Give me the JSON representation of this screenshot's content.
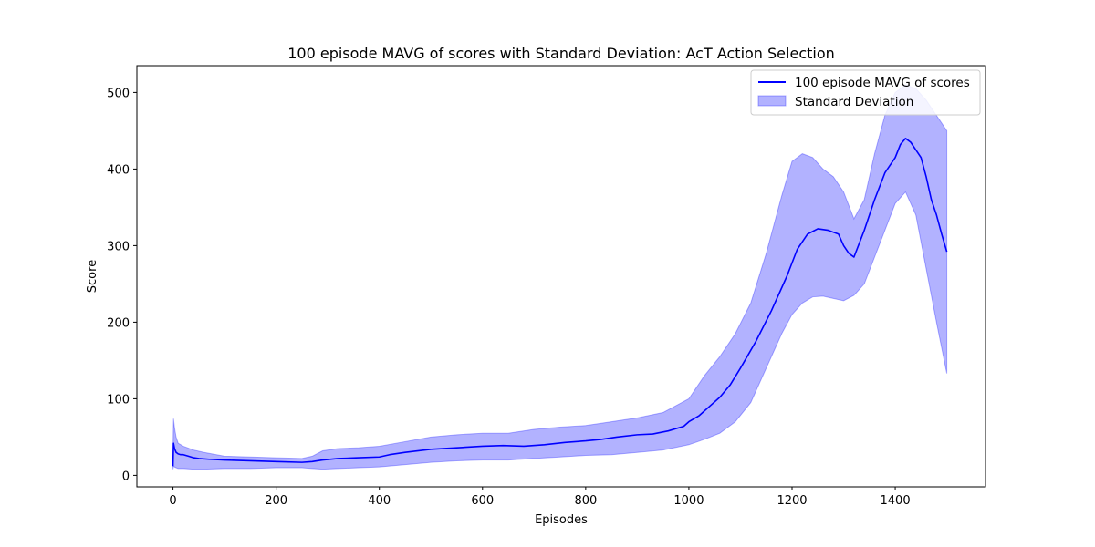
{
  "chart_data": {
    "type": "line",
    "title": "100 episode MAVG of scores with Standard Deviation: AcT Action Selection",
    "xlabel": "Episodes",
    "ylabel": "Score",
    "xlim": [
      -70,
      1575
    ],
    "ylim": [
      -15,
      535
    ],
    "x_ticks": [
      0,
      200,
      400,
      600,
      800,
      1000,
      1200,
      1400
    ],
    "y_ticks": [
      0,
      100,
      200,
      300,
      400,
      500
    ],
    "grid": false,
    "legend_position": "top-right",
    "series": [
      {
        "name": "100 episode MAVG of scores",
        "kind": "line",
        "color": "#0000ff",
        "x": [
          0,
          1,
          3,
          6,
          10,
          15,
          20,
          30,
          40,
          50,
          70,
          100,
          150,
          200,
          250,
          270,
          290,
          320,
          360,
          400,
          420,
          450,
          500,
          550,
          600,
          640,
          680,
          720,
          760,
          800,
          830,
          860,
          900,
          930,
          960,
          990,
          1000,
          1020,
          1040,
          1060,
          1080,
          1100,
          1130,
          1160,
          1190,
          1210,
          1230,
          1250,
          1270,
          1290,
          1300,
          1310,
          1320,
          1340,
          1360,
          1380,
          1400,
          1410,
          1420,
          1430,
          1440,
          1450,
          1460,
          1470,
          1480,
          1490,
          1500
        ],
        "y": [
          12,
          42,
          35,
          30,
          28,
          27,
          27,
          25,
          23,
          22,
          21,
          20,
          19,
          18,
          17,
          18,
          20,
          22,
          23,
          24,
          27,
          30,
          34,
          36,
          38,
          39,
          38,
          40,
          43,
          45,
          47,
          50,
          53,
          54,
          58,
          64,
          70,
          78,
          90,
          102,
          118,
          140,
          175,
          215,
          260,
          295,
          315,
          322,
          320,
          315,
          300,
          290,
          285,
          320,
          360,
          395,
          415,
          432,
          440,
          435,
          425,
          415,
          390,
          360,
          340,
          315,
          292
        ]
      },
      {
        "name": "Standard Deviation",
        "kind": "band",
        "color": "#0000ff",
        "opacity": 0.3,
        "x": [
          0,
          1,
          3,
          6,
          10,
          20,
          40,
          60,
          100,
          150,
          200,
          250,
          270,
          290,
          320,
          360,
          400,
          450,
          500,
          550,
          600,
          650,
          700,
          750,
          800,
          850,
          900,
          950,
          1000,
          1030,
          1060,
          1090,
          1120,
          1150,
          1180,
          1200,
          1220,
          1240,
          1260,
          1280,
          1300,
          1320,
          1340,
          1360,
          1380,
          1400,
          1420,
          1440,
          1460,
          1480,
          1500
        ],
        "upper": [
          30,
          74,
          62,
          50,
          42,
          38,
          33,
          30,
          25,
          24,
          23,
          22,
          25,
          32,
          35,
          36,
          38,
          44,
          50,
          53,
          55,
          55,
          60,
          63,
          65,
          70,
          75,
          82,
          100,
          130,
          155,
          185,
          225,
          290,
          365,
          410,
          420,
          415,
          400,
          390,
          370,
          335,
          360,
          420,
          470,
          500,
          510,
          505,
          490,
          470,
          450
        ],
        "lower": [
          8,
          12,
          11,
          10,
          9,
          9,
          8,
          8,
          9,
          9,
          10,
          10,
          9,
          8,
          9,
          10,
          11,
          14,
          17,
          19,
          20,
          20,
          22,
          24,
          26,
          27,
          30,
          33,
          40,
          47,
          55,
          70,
          95,
          140,
          185,
          210,
          225,
          233,
          234,
          231,
          228,
          235,
          250,
          285,
          320,
          355,
          370,
          340,
          270,
          200,
          133
        ]
      }
    ]
  }
}
